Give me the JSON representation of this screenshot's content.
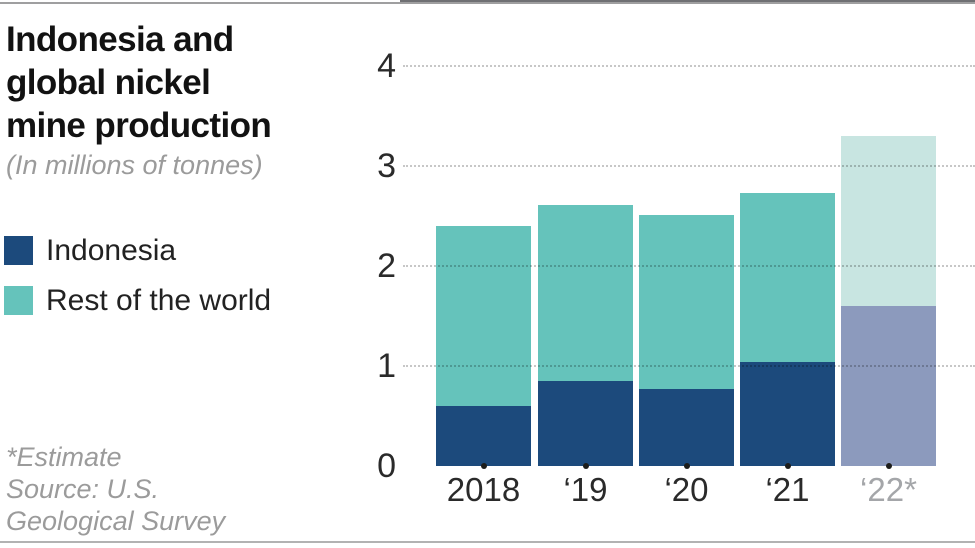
{
  "header": {
    "title": "Indonesia and\nglobal nickel\nmine production",
    "subtitle": "(In millions of tonnes)"
  },
  "legend": {
    "items": [
      {
        "label": "Indonesia",
        "color": "#1c4a7c"
      },
      {
        "label": "Rest of the world",
        "color": "#65c3bb"
      }
    ]
  },
  "footnote": {
    "text": "*Estimate\nSource: U.S.\nGeological Survey"
  },
  "colors": {
    "indonesia": "#1c4a7c",
    "rest_of_world": "#65c3bb",
    "indonesia_estimate": "#8796ba",
    "rest_of_world_estimate": "#c6e4e0",
    "grid_dots": "#c9c9c9",
    "axis_line": "#6f7073",
    "tick_dot": "#1d1d1b",
    "x_label": "#2a2a2a",
    "x_label_estimate": "#a4a6a9",
    "subtitle_gray": "#9b9b9b"
  },
  "chart_data": {
    "type": "bar",
    "stacked": true,
    "title": "Indonesia and global nickel mine production",
    "subtitle": "(In millions of tonnes)",
    "categories": [
      "2018",
      "‘19",
      "‘20",
      "‘21",
      "‘22*"
    ],
    "series": [
      {
        "name": "Indonesia",
        "values": [
          0.6,
          0.85,
          0.77,
          1.04,
          1.6
        ]
      },
      {
        "name": "Rest of the world",
        "values": [
          1.8,
          1.76,
          1.74,
          1.69,
          1.7
        ]
      }
    ],
    "totals": [
      2.4,
      2.61,
      2.51,
      2.73,
      3.3
    ],
    "estimate_index": 4,
    "ylabel": "",
    "xlabel": "",
    "ylim": [
      0,
      4
    ],
    "yticks": [
      0,
      1,
      2,
      3,
      4
    ],
    "grid": "dotted-horizontal",
    "legend_position": "left",
    "footnote": "*Estimate  Source: U.S. Geological Survey"
  }
}
